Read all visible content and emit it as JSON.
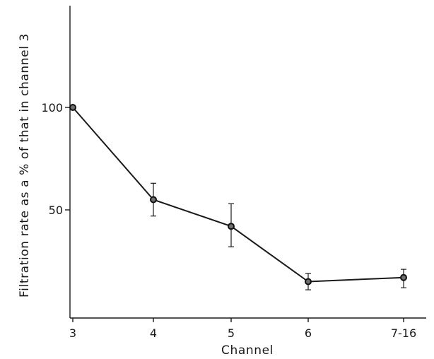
{
  "chart_data": {
    "type": "line",
    "xlabel": "Channel",
    "ylabel": "Filtration rate as a % of that in channel 3",
    "categories": [
      "3",
      "4",
      "5",
      "6",
      "7-16"
    ],
    "series": [
      {
        "values": [
          100,
          55,
          42,
          15,
          17
        ],
        "error_low": [
          100,
          47,
          32,
          11,
          12
        ],
        "error_high": [
          100,
          63,
          53,
          19,
          21
        ]
      }
    ],
    "y_ticks": [
      {
        "value": 50,
        "label": "50"
      },
      {
        "value": 100,
        "label": "100"
      }
    ],
    "ylim": [
      0,
      150
    ],
    "grid": false,
    "legend": "none"
  }
}
